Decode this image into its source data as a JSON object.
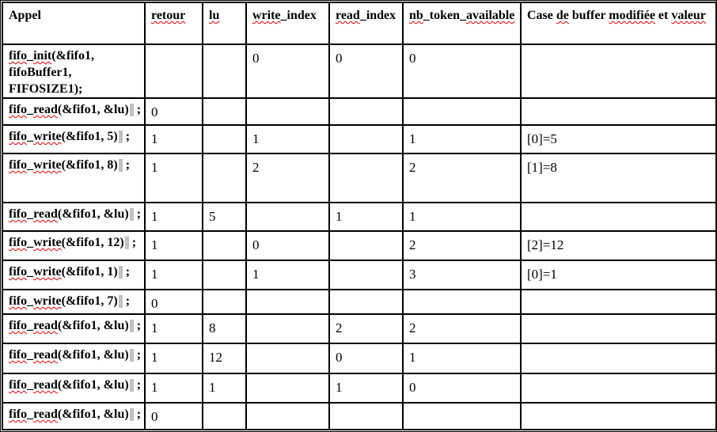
{
  "colors": {
    "text": "#000000",
    "border": "#000000",
    "spellcheck_squiggle": "#e00000",
    "nbsp_shading": "#c1c1c1",
    "background": "#ffffff"
  },
  "table": {
    "columns": [
      {
        "key": "call",
        "label_runs": [
          {
            "t": "Appel"
          }
        ]
      },
      {
        "key": "retour",
        "label_runs": [
          {
            "t": "retour",
            "sq": true
          }
        ]
      },
      {
        "key": "lu",
        "label_runs": [
          {
            "t": "lu",
            "sq": true
          }
        ]
      },
      {
        "key": "write_index",
        "label_runs": [
          {
            "t": "write",
            "sq": true
          },
          {
            "t": "_index"
          }
        ]
      },
      {
        "key": "read_index",
        "label_runs": [
          {
            "t": "read",
            "sq": true
          },
          {
            "t": "_index"
          }
        ]
      },
      {
        "key": "nb_token_available",
        "label_runs": [
          {
            "t": "nb",
            "sq": true
          },
          {
            "t": "_token_"
          },
          {
            "t": "available",
            "sq": true
          }
        ]
      },
      {
        "key": "case",
        "justify": true,
        "label_runs": [
          {
            "t": "Case "
          },
          {
            "t": "de",
            "sq": true
          },
          {
            "t": " buffer "
          },
          {
            "t": "modifiée",
            "sq": true
          },
          {
            "t": " et "
          },
          {
            "t": "valeur",
            "sq": true
          }
        ]
      }
    ],
    "rows": [
      {
        "call": {
          "wrap": true,
          "runs": [
            {
              "t": "fifo",
              "sq": true
            },
            {
              "t": "_"
            },
            {
              "t": "init",
              "sq": true
            },
            {
              "t": "(&fifo1, fifoBuffer1, FIFOSIZE1);"
            }
          ]
        },
        "retour": "",
        "lu": "",
        "write_index": "0",
        "read_index": "0",
        "nb_token_available": "0",
        "case": ""
      },
      {
        "call": {
          "runs": [
            {
              "t": "fifo",
              "sq": true
            },
            {
              "t": "_"
            },
            {
              "t": "read",
              "sq": true
            },
            {
              "t": "(&fifo1, &lu)"
            },
            {
              "gray": true
            },
            {
              "t": " ;"
            }
          ]
        },
        "retour": "0",
        "lu": "",
        "write_index": "",
        "read_index": "",
        "nb_token_available": "",
        "case": ""
      },
      {
        "call": {
          "runs": [
            {
              "t": "fifo",
              "sq": true
            },
            {
              "t": "_"
            },
            {
              "t": "write",
              "sq": true
            },
            {
              "t": "(&fifo1, 5)"
            },
            {
              "gray": true
            },
            {
              "t": " ;"
            }
          ]
        },
        "retour": "1",
        "lu": "",
        "write_index": "1",
        "read_index": "",
        "nb_token_available": "1",
        "case": "[0]=5"
      },
      {
        "call": {
          "runs": [
            {
              "t": "fifo",
              "sq": true
            },
            {
              "t": "_"
            },
            {
              "t": "write",
              "sq": true
            },
            {
              "t": "(&fifo1, 8)"
            },
            {
              "gray": true
            },
            {
              "t": " ;"
            }
          ]
        },
        "retour": "1",
        "lu": "",
        "write_index": "2",
        "read_index": "",
        "nb_token_available": "2",
        "case": "[1]=8"
      },
      {
        "call": {
          "runs": [
            {
              "t": "fifo",
              "sq": true
            },
            {
              "t": "_"
            },
            {
              "t": "read",
              "sq": true
            },
            {
              "t": "(&fifo1, &lu)"
            },
            {
              "gray": true
            },
            {
              "t": " ;"
            }
          ]
        },
        "retour": "1",
        "lu": "5",
        "write_index": "",
        "read_index": "1",
        "nb_token_available": "1",
        "case": ""
      },
      {
        "call": {
          "runs": [
            {
              "t": "fifo",
              "sq": true
            },
            {
              "t": "_"
            },
            {
              "t": "write",
              "sq": true
            },
            {
              "t": "(&fifo1, 12)"
            },
            {
              "gray": true
            },
            {
              "t": " ;"
            }
          ]
        },
        "retour": "1",
        "lu": "",
        "write_index": "0",
        "read_index": "",
        "nb_token_available": "2",
        "case": "[2]=12"
      },
      {
        "call": {
          "runs": [
            {
              "t": "fifo",
              "sq": true
            },
            {
              "t": "_"
            },
            {
              "t": "write",
              "sq": true
            },
            {
              "t": "(&fifo1, 1)"
            },
            {
              "gray": true
            },
            {
              "t": " ;"
            }
          ]
        },
        "retour": "1",
        "lu": "",
        "write_index": "1",
        "read_index": "",
        "nb_token_available": "3",
        "case": "[0]=1"
      },
      {
        "call": {
          "runs": [
            {
              "t": "fifo",
              "sq": true
            },
            {
              "t": "_"
            },
            {
              "t": "write",
              "sq": true
            },
            {
              "t": "(&fifo1, 7)"
            },
            {
              "gray": true
            },
            {
              "t": " ;"
            }
          ]
        },
        "retour": "0",
        "lu": "",
        "write_index": "",
        "read_index": "",
        "nb_token_available": "",
        "case": ""
      },
      {
        "call": {
          "runs": [
            {
              "t": "fifo",
              "sq": true
            },
            {
              "t": "_"
            },
            {
              "t": "read",
              "sq": true
            },
            {
              "t": "(&fifo1, &lu)"
            },
            {
              "gray": true
            },
            {
              "t": " ;"
            }
          ]
        },
        "retour": "1",
        "lu": "8",
        "write_index": "",
        "read_index": "2",
        "nb_token_available": "2",
        "case": ""
      },
      {
        "call": {
          "runs": [
            {
              "t": "fifo",
              "sq": true
            },
            {
              "t": "_"
            },
            {
              "t": "read",
              "sq": true
            },
            {
              "t": "(&fifo1, &lu)"
            },
            {
              "gray": true
            },
            {
              "t": " ;"
            }
          ]
        },
        "retour": "1",
        "lu": "12",
        "write_index": "",
        "read_index": "0",
        "nb_token_available": "1",
        "case": ""
      },
      {
        "call": {
          "runs": [
            {
              "t": "fifo",
              "sq": true
            },
            {
              "t": "_"
            },
            {
              "t": "read",
              "sq": true
            },
            {
              "t": "(&fifo1, &lu)"
            },
            {
              "gray": true
            },
            {
              "t": " ;"
            }
          ]
        },
        "retour": "1",
        "lu": "1",
        "write_index": "",
        "read_index": "1",
        "nb_token_available": "0",
        "case": ""
      },
      {
        "call": {
          "runs": [
            {
              "t": "fifo",
              "sq": true
            },
            {
              "t": "_"
            },
            {
              "t": "read",
              "sq": true
            },
            {
              "t": "(&fifo1, &lu)"
            },
            {
              "gray": true
            },
            {
              "t": " ;"
            }
          ]
        },
        "retour": "0",
        "lu": "",
        "write_index": "",
        "read_index": "",
        "nb_token_available": "",
        "case": ""
      }
    ]
  }
}
